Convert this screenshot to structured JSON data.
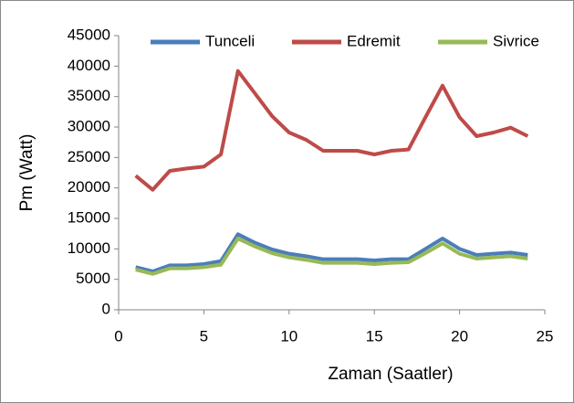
{
  "chart_data": {
    "type": "line",
    "x_label": "Zaman (Saatler)",
    "y_label": "Pm (Watt)",
    "x": [
      1,
      2,
      3,
      4,
      5,
      6,
      7,
      8,
      9,
      10,
      11,
      12,
      13,
      14,
      15,
      16,
      17,
      18,
      19,
      20,
      21,
      22,
      23,
      24
    ],
    "series": [
      {
        "name": "Tunceli",
        "color": "#4a7ebb",
        "values": [
          7000,
          6300,
          7300,
          7300,
          7500,
          8000,
          12400,
          11000,
          9900,
          9200,
          8800,
          8300,
          8300,
          8300,
          8100,
          8300,
          8300,
          10000,
          11700,
          10000,
          9000,
          9200,
          9400,
          9000
        ]
      },
      {
        "name": "Edremit",
        "color": "#be4b48",
        "values": [
          22000,
          19700,
          22800,
          23200,
          23500,
          25500,
          39200,
          35500,
          31800,
          29100,
          27900,
          26100,
          26100,
          26100,
          25500,
          26100,
          26300,
          31600,
          36800,
          31600,
          28500,
          29100,
          29900,
          28500
        ]
      },
      {
        "name": "Sivrice",
        "color": "#98b954",
        "values": [
          6600,
          5900,
          6800,
          6800,
          7000,
          7400,
          11700,
          10400,
          9300,
          8600,
          8200,
          7700,
          7700,
          7700,
          7500,
          7700,
          7800,
          9300,
          10900,
          9200,
          8400,
          8600,
          8800,
          8400
        ]
      }
    ],
    "xlim": [
      0,
      25
    ],
    "xticks": [
      0,
      5,
      10,
      15,
      20,
      25
    ],
    "ylim": [
      0,
      45000
    ],
    "yticks": [
      0,
      5000,
      10000,
      15000,
      20000,
      25000,
      30000,
      35000,
      40000,
      45000
    ],
    "grid": false,
    "legend": "top"
  }
}
